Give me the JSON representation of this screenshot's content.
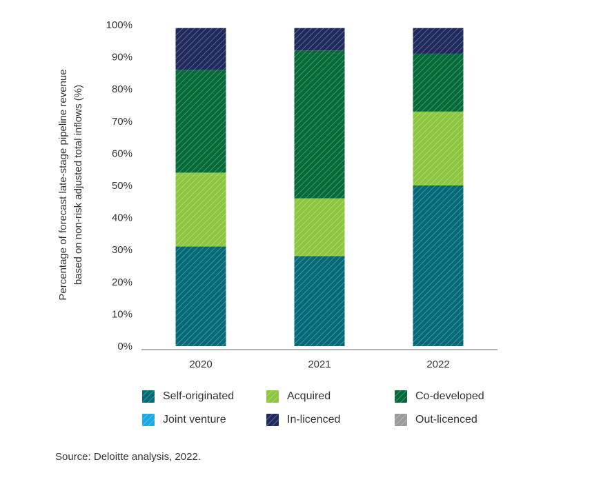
{
  "chart_data": {
    "type": "bar",
    "stacked": true,
    "categories": [
      "2020",
      "2021",
      "2022"
    ],
    "series": [
      {
        "name": "Self-originated",
        "color": "#046a78",
        "values": [
          31,
          28,
          50
        ]
      },
      {
        "name": "Acquired",
        "color": "#8dc63f",
        "values": [
          23,
          18,
          23
        ]
      },
      {
        "name": "Co-developed",
        "color": "#046a38",
        "values": [
          32,
          46,
          18
        ]
      },
      {
        "name": "Joint venture",
        "color": "#1aa9e0",
        "values": [
          0,
          0,
          0
        ]
      },
      {
        "name": "In-licenced",
        "color": "#1f2a5c",
        "values": [
          13,
          7,
          8
        ]
      },
      {
        "name": "Out-licenced",
        "color": "#9b9b9b",
        "values": [
          0,
          0,
          0
        ]
      }
    ],
    "ylim": [
      0,
      100
    ],
    "yticks": [
      "0%",
      "10%",
      "20%",
      "30%",
      "40%",
      "50%",
      "60%",
      "70%",
      "80%",
      "90%",
      "100%"
    ],
    "ylabel_line1": "Percentage of forecast late-stage pipeline revenue",
    "ylabel_line2": "based on non-risk adjusted total inflows (%)",
    "xlabel": "",
    "title": "",
    "legend_position": "bottom",
    "grid": false
  },
  "legend": {
    "items": [
      "Self-originated",
      "Acquired",
      "Co-developed",
      "Joint venture",
      "In-licenced",
      "Out-licenced"
    ]
  },
  "source": "Source: Deloitte analysis, 2022."
}
